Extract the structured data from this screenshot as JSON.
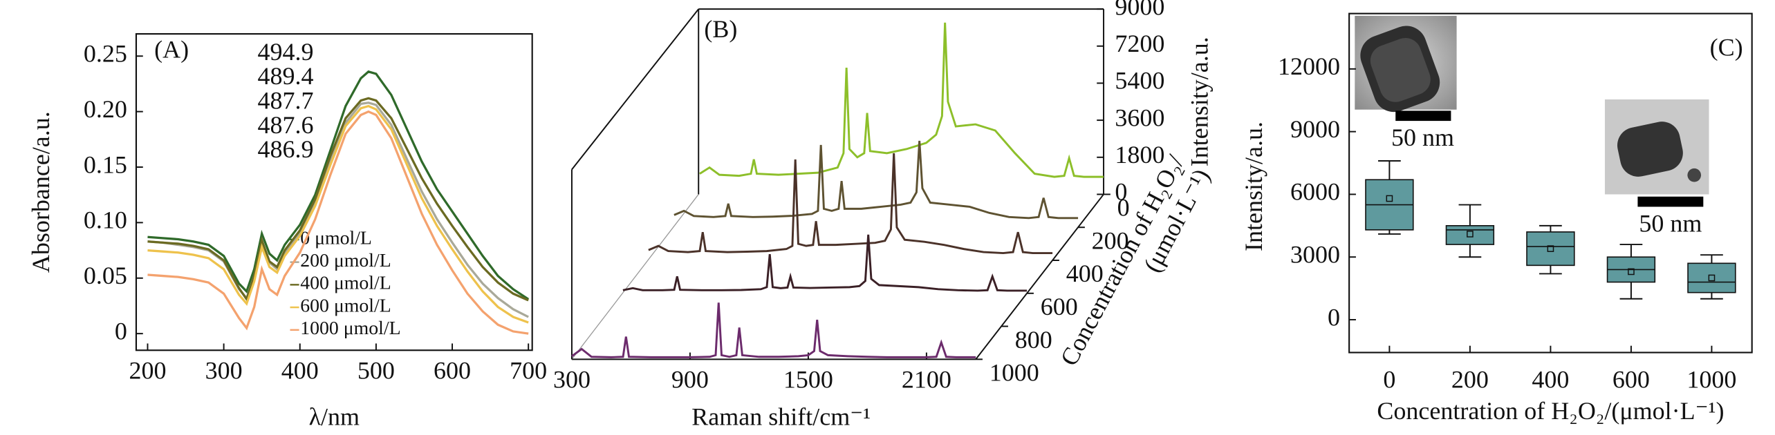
{
  "chart_data": [
    {
      "type": "line",
      "label": "(A)",
      "xlabel": "λ/nm",
      "ylabel": "Absorbance/a.u.",
      "x": [
        200,
        220,
        240,
        260,
        280,
        300,
        320,
        330,
        340,
        350,
        360,
        370,
        380,
        400,
        420,
        440,
        460,
        480,
        490,
        500,
        520,
        540,
        560,
        580,
        600,
        620,
        640,
        660,
        680,
        700
      ],
      "xlim": [
        185,
        705
      ],
      "ylim": [
        -0.015,
        0.27
      ],
      "xticks": [
        200,
        300,
        400,
        500,
        600,
        700
      ],
      "yticks": [
        0,
        0.05,
        {
          "value": 0.1,
          "label": "0.10"
        },
        0.15,
        {
          "value": 0.2,
          "label": "0.20"
        },
        0.25
      ],
      "series": [
        {
          "name": "0 μmol/L",
          "color": "#2f6a2a",
          "peak": 494.9,
          "values": [
            0.087,
            0.086,
            0.085,
            0.083,
            0.08,
            0.07,
            0.045,
            0.038,
            0.058,
            0.09,
            0.072,
            0.066,
            0.08,
            0.098,
            0.125,
            0.165,
            0.205,
            0.23,
            0.236,
            0.234,
            0.215,
            0.185,
            0.155,
            0.13,
            0.11,
            0.09,
            0.07,
            0.052,
            0.04,
            0.031
          ]
        },
        {
          "name": "200 μmol/L",
          "color": "#a9a999",
          "peak": 489.4,
          "values": [
            0.083,
            0.082,
            0.08,
            0.078,
            0.075,
            0.065,
            0.04,
            0.032,
            0.052,
            0.083,
            0.064,
            0.058,
            0.072,
            0.09,
            0.118,
            0.156,
            0.19,
            0.207,
            0.208,
            0.206,
            0.188,
            0.158,
            0.128,
            0.103,
            0.082,
            0.062,
            0.045,
            0.032,
            0.022,
            0.015
          ]
        },
        {
          "name": "400 μmol/L",
          "color": "#6b6a22",
          "peak": 487.7,
          "values": [
            0.083,
            0.082,
            0.081,
            0.079,
            0.076,
            0.066,
            0.041,
            0.031,
            0.052,
            0.084,
            0.065,
            0.06,
            0.075,
            0.093,
            0.121,
            0.16,
            0.194,
            0.21,
            0.212,
            0.21,
            0.194,
            0.167,
            0.14,
            0.117,
            0.097,
            0.078,
            0.06,
            0.046,
            0.036,
            0.03
          ]
        },
        {
          "name": "600 μmol/L",
          "color": "#eec24c",
          "peak": 487.6,
          "values": [
            0.075,
            0.074,
            0.073,
            0.071,
            0.068,
            0.058,
            0.035,
            0.027,
            0.047,
            0.078,
            0.06,
            0.055,
            0.07,
            0.088,
            0.115,
            0.152,
            0.187,
            0.203,
            0.205,
            0.202,
            0.184,
            0.153,
            0.122,
            0.097,
            0.076,
            0.056,
            0.038,
            0.024,
            0.015,
            0.01
          ]
        },
        {
          "name": "1000 μmol/L",
          "color": "#f4a26e",
          "peak": 486.9,
          "values": [
            0.053,
            0.052,
            0.051,
            0.049,
            0.046,
            0.036,
            0.014,
            0.005,
            0.024,
            0.058,
            0.04,
            0.035,
            0.052,
            0.073,
            0.103,
            0.143,
            0.18,
            0.197,
            0.2,
            0.197,
            0.176,
            0.142,
            0.108,
            0.08,
            0.057,
            0.036,
            0.02,
            0.008,
            0.002,
            0
          ]
        }
      ]
    },
    {
      "type": "waterfall",
      "label": "(B)",
      "xlabel": "Raman shift/cm⁻¹",
      "ylabel": "Intensity/a.u.",
      "zlabel": [
        "Concentration of H₂O₂/",
        "(μmol·L⁻¹)"
      ],
      "x": [
        300,
        350,
        400,
        500,
        560,
        575,
        590,
        700,
        800,
        900,
        1000,
        1030,
        1045,
        1060,
        1100,
        1135,
        1150,
        1165,
        1250,
        1350,
        1450,
        1500,
        1530,
        1545,
        1560,
        1600,
        1700,
        1800,
        1900,
        2000,
        2100,
        2150,
        2175,
        2200,
        2250,
        2350
      ],
      "xlim": [
        300,
        2350
      ],
      "xticks": [
        300,
        900,
        1500,
        2100
      ],
      "ylim": [
        0,
        9000
      ],
      "yticks": [
        0,
        1800,
        3600,
        5400,
        7200,
        9000
      ],
      "zlim": [
        0,
        1000
      ],
      "zticks": [
        0,
        200,
        400,
        600,
        800,
        1000
      ],
      "series": [
        {
          "color": "#8dbf2a",
          "z": 0,
          "values": [
            1000,
            1300,
            950,
            900,
            1000,
            1700,
            1000,
            950,
            1000,
            1050,
            1300,
            2000,
            6150,
            2200,
            1800,
            2000,
            3950,
            2100,
            2000,
            2200,
            2500,
            2900,
            3800,
            8340,
            4500,
            3300,
            3400,
            3100,
            2000,
            1000,
            850,
            900,
            1760,
            900,
            850,
            850
          ]
        },
        {
          "color": "#5e5231",
          "z": 200,
          "values": [
            600,
            800,
            550,
            500,
            550,
            1150,
            550,
            500,
            520,
            560,
            650,
            800,
            4000,
            900,
            800,
            900,
            2250,
            900,
            900,
            1000,
            1100,
            1200,
            1700,
            4200,
            1900,
            1200,
            1100,
            1000,
            700,
            500,
            450,
            500,
            1430,
            500,
            450,
            450
          ]
        },
        {
          "color": "#4b3229",
          "z": 400,
          "values": [
            500,
            700,
            450,
            400,
            450,
            1370,
            450,
            400,
            420,
            450,
            550,
            700,
            4900,
            800,
            700,
            750,
            1900,
            750,
            750,
            800,
            850,
            950,
            1500,
            5200,
            1600,
            1000,
            900,
            750,
            550,
            400,
            350,
            400,
            1370,
            400,
            350,
            350
          ]
        },
        {
          "color": "#3b2026",
          "z": 600,
          "values": [
            150,
            250,
            150,
            150,
            170,
            820,
            170,
            150,
            150,
            160,
            200,
            300,
            1900,
            300,
            250,
            280,
            820,
            280,
            260,
            280,
            300,
            350,
            600,
            2850,
            700,
            400,
            350,
            300,
            200,
            150,
            130,
            150,
            820,
            150,
            130,
            130
          ]
        },
        {
          "color": "#6c2b6c",
          "z": 1000,
          "values": [
            150,
            500,
            120,
            100,
            120,
            1100,
            120,
            100,
            100,
            100,
            120,
            200,
            2750,
            200,
            120,
            200,
            1540,
            200,
            120,
            120,
            150,
            200,
            400,
            1920,
            400,
            200,
            150,
            120,
            100,
            100,
            100,
            120,
            820,
            120,
            100,
            100
          ]
        }
      ]
    },
    {
      "type": "box",
      "label": "(C)",
      "xlabel": "Concentration of H₂O₂/(μmol·L⁻¹)",
      "ylabel": "Intensity/a.u.",
      "categories": [
        "0",
        "200",
        "400",
        "600",
        "1000"
      ],
      "color": "#5f9a9e",
      "ylim": [
        -1570,
        14650
      ],
      "yticks": [
        0,
        3000,
        6000,
        9000,
        12000
      ],
      "low": [
        4100,
        3000,
        2200,
        1000,
        1000
      ],
      "q1": [
        4300,
        3600,
        2600,
        1800,
        1300
      ],
      "median": [
        5500,
        4300,
        3500,
        2400,
        1800
      ],
      "q3": [
        6700,
        4500,
        4200,
        3000,
        2700
      ],
      "high": [
        7600,
        5500,
        4500,
        3600,
        3100
      ],
      "mean": [
        5800,
        4100,
        3400,
        2300,
        2000
      ],
      "scale_bars": [
        "50 nm",
        "50 nm"
      ]
    }
  ]
}
